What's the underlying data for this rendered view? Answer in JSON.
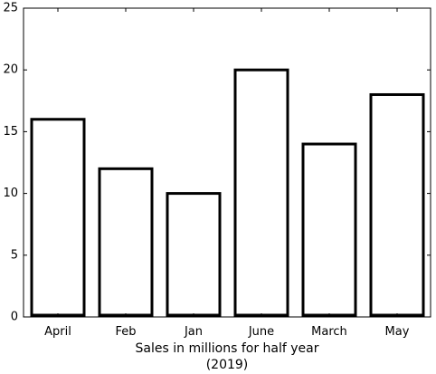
{
  "chart_data": {
    "type": "bar",
    "categories": [
      "April",
      "Feb",
      "Jan",
      "June",
      "March",
      "May"
    ],
    "values": [
      16,
      12,
      10,
      20,
      14,
      18
    ],
    "title": "",
    "xlabel_lines": [
      "Sales in millions for half year",
      "(2019)"
    ],
    "ylabel": "",
    "ylim": [
      0,
      25
    ],
    "yticks": [
      0,
      5,
      10,
      15,
      20,
      25
    ],
    "grid": false,
    "bar_fill": "#ffffff",
    "bar_stroke": "#000000"
  }
}
